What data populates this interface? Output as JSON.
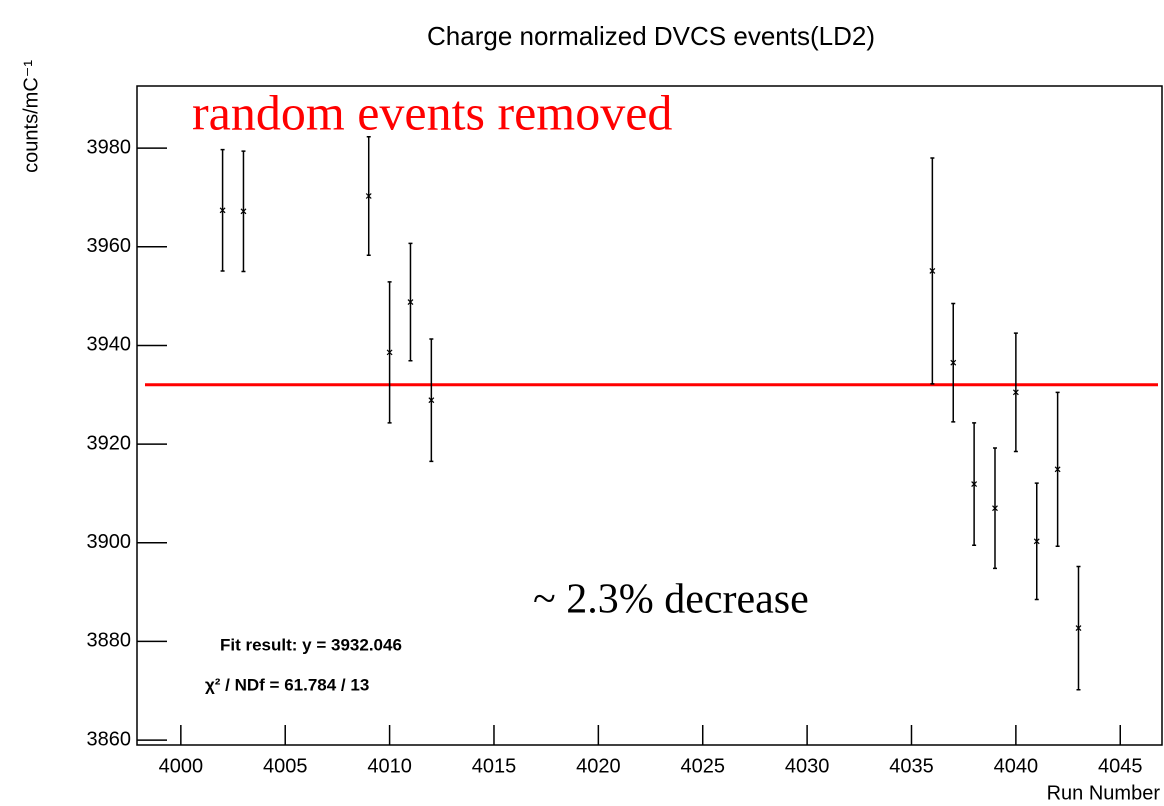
{
  "chart_data": {
    "type": "scatter",
    "title": "Charge normalized DVCS events(LD2)",
    "x_label": "Run Number",
    "y_label": "counts/mC⁻¹",
    "x": [
      4002,
      4003,
      4009,
      4010,
      4011,
      4012,
      4036,
      4037,
      4038,
      4039,
      4040,
      4041,
      4042,
      4043
    ],
    "values": [
      3967.4,
      3967.2,
      3970.3,
      3938.6,
      3948.8,
      3928.9,
      3955.1,
      3936.5,
      3911.9,
      3907.0,
      3930.5,
      3900.3,
      3914.9,
      3882.7
    ],
    "errors": [
      12.3,
      12.2,
      12.0,
      14.3,
      11.9,
      12.4,
      22.9,
      12.0,
      12.4,
      12.2,
      12.0,
      11.8,
      15.6,
      12.5
    ],
    "color": "#000000",
    "fit": {
      "value": 3932.046,
      "color": "#ff0000",
      "label": "Fit result: y = 3932.046",
      "chi2": "χ² / NDf = 61.784 / 13"
    },
    "annotations": [
      "random events removed",
      "~ 2.3% decrease"
    ],
    "annotation_colors": [
      "#ff0000",
      "#000000"
    ],
    "xlim": [
      3997.9,
      4047.0
    ],
    "xticks": [
      4000,
      4005,
      4010,
      4015,
      4020,
      4025,
      4030,
      4035,
      4040,
      4045
    ],
    "ylim": [
      3859,
      3992.6
    ],
    "yticks": [
      3860,
      3880,
      3900,
      3920,
      3940,
      3960,
      3980
    ]
  }
}
